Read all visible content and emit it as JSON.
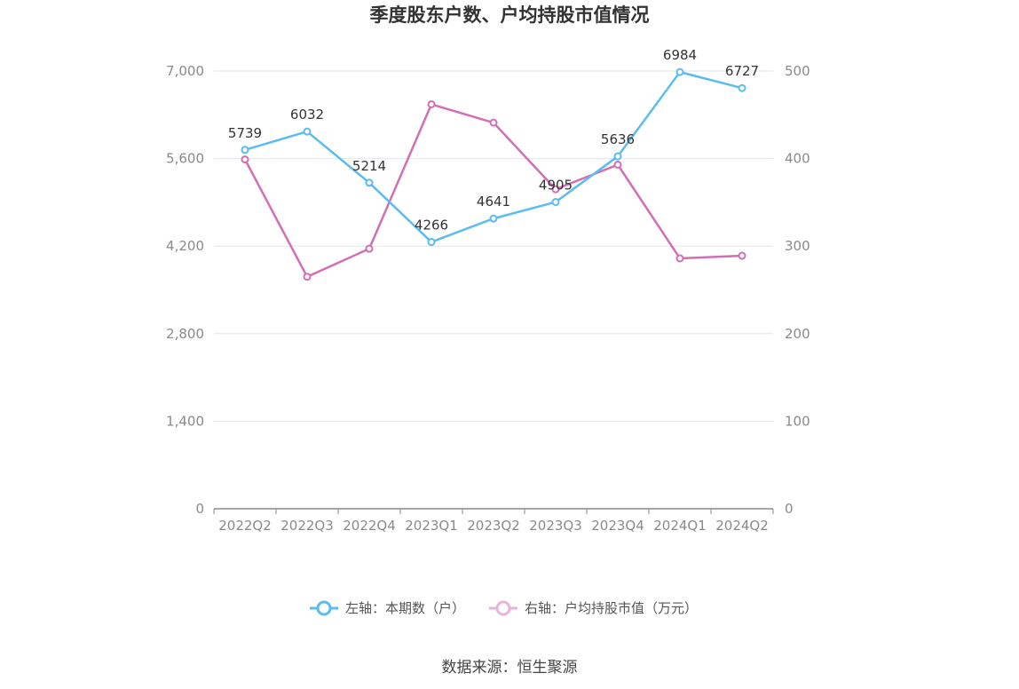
{
  "chart_data": {
    "type": "line",
    "title": "季度股东户数、户均持股市值情况",
    "categories": [
      "2022Q2",
      "2022Q3",
      "2022Q4",
      "2023Q1",
      "2023Q2",
      "2023Q3",
      "2023Q4",
      "2024Q1",
      "2024Q2"
    ],
    "series": [
      {
        "name": "左轴：本期数（户）",
        "axis": "left",
        "color": "#5bbcf0",
        "values": [
          5739,
          6032,
          5214,
          4266,
          4641,
          4905,
          5636,
          6984,
          6727
        ],
        "data_labels": [
          "5739",
          "6032",
          "5214",
          "4266",
          "4641",
          "4905",
          "5636",
          "6984",
          "6727"
        ]
      },
      {
        "name": "右轴：户均持股市值（万元）",
        "axis": "right",
        "color": "#d36eb5",
        "values": [
          399,
          265,
          297,
          462,
          441,
          365,
          393,
          286,
          289
        ]
      }
    ],
    "left_axis": {
      "min": 0,
      "max": 7000,
      "ticks": [
        "0",
        "1,400",
        "2,800",
        "4,200",
        "5,600",
        "7,000"
      ]
    },
    "right_axis": {
      "min": 0,
      "max": 500,
      "ticks": [
        "0",
        "100",
        "200",
        "300",
        "400",
        "500"
      ]
    },
    "grid": true,
    "legend_position": "bottom"
  },
  "source": "数据来源：恒生聚源"
}
